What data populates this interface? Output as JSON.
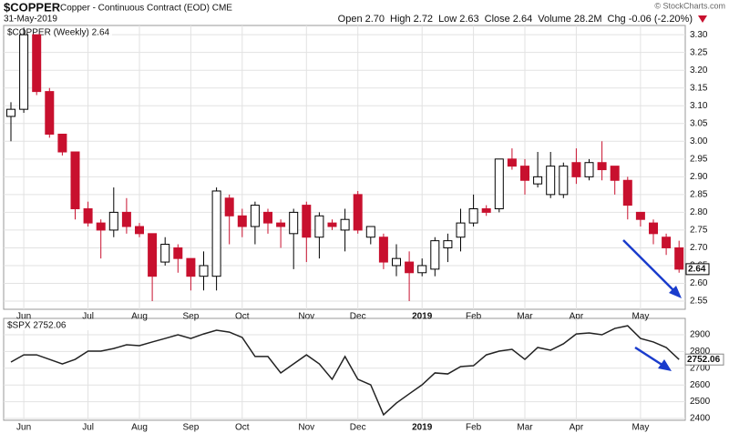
{
  "header": {
    "symbol": "$COPPER",
    "name": "Copper - Continuous Contract (EOD) CME",
    "date": "31-May-2019",
    "copyright": "© StockCharts.com",
    "quote": [
      {
        "label": "Open",
        "value": "2.70"
      },
      {
        "label": "High",
        "value": "2.72"
      },
      {
        "label": "Low",
        "value": "2.63"
      },
      {
        "label": "Close",
        "value": "2.64"
      },
      {
        "label": "Volume",
        "value": "28.2M"
      },
      {
        "label": "Chg",
        "value": "-0.06 (-2.20%)"
      }
    ]
  },
  "chart_data": [
    {
      "type": "candlestick",
      "title": "$COPPER (Weekly) 2.64",
      "categories": [
        null,
        "Jun",
        null,
        null,
        null,
        null,
        "Jul",
        null,
        null,
        null,
        "Aug",
        null,
        null,
        null,
        "Sep",
        null,
        null,
        null,
        "Oct",
        null,
        null,
        null,
        null,
        "Nov",
        null,
        null,
        null,
        "Dec",
        null,
        null,
        null,
        null,
        "2019",
        null,
        null,
        null,
        "Feb",
        null,
        null,
        null,
        "Mar",
        null,
        null,
        null,
        "Apr",
        null,
        null,
        null,
        null,
        "May",
        null,
        null,
        null
      ],
      "open": [
        3.07,
        3.09,
        3.3,
        3.14,
        3.02,
        2.97,
        2.81,
        2.77,
        2.75,
        2.8,
        2.76,
        2.74,
        2.66,
        2.7,
        2.67,
        2.62,
        2.62,
        2.84,
        2.79,
        2.76,
        2.8,
        2.77,
        2.74,
        2.82,
        2.73,
        2.77,
        2.75,
        2.85,
        2.73,
        2.73,
        2.65,
        2.66,
        2.63,
        2.64,
        2.7,
        2.73,
        2.77,
        2.81,
        2.81,
        2.95,
        2.93,
        2.88,
        2.85,
        2.85,
        2.94,
        2.9,
        2.94,
        2.93,
        2.89,
        2.8,
        2.77,
        2.73,
        2.7
      ],
      "high": [
        3.11,
        3.32,
        3.3,
        3.15,
        3.02,
        2.97,
        2.83,
        2.78,
        2.87,
        2.84,
        2.77,
        2.74,
        2.73,
        2.71,
        2.67,
        2.69,
        2.87,
        2.85,
        2.81,
        2.83,
        2.81,
        2.78,
        2.81,
        2.83,
        2.8,
        2.78,
        2.81,
        2.86,
        2.76,
        2.74,
        2.71,
        2.69,
        2.67,
        2.73,
        2.74,
        2.81,
        2.85,
        2.82,
        2.95,
        2.98,
        2.95,
        2.97,
        2.97,
        2.94,
        2.98,
        2.95,
        3.0,
        2.93,
        2.9,
        2.8,
        2.78,
        2.74,
        2.72
      ],
      "low": [
        3.0,
        3.08,
        3.13,
        3.01,
        2.96,
        2.78,
        2.76,
        2.67,
        2.73,
        2.74,
        2.73,
        2.55,
        2.65,
        2.63,
        2.58,
        2.58,
        2.58,
        2.71,
        2.73,
        2.71,
        2.74,
        2.7,
        2.64,
        2.66,
        2.67,
        2.75,
        2.69,
        2.74,
        2.71,
        2.64,
        2.62,
        2.55,
        2.62,
        2.62,
        2.66,
        2.69,
        2.76,
        2.79,
        2.8,
        2.92,
        2.85,
        2.87,
        2.84,
        2.84,
        2.88,
        2.89,
        2.89,
        2.85,
        2.78,
        2.76,
        2.71,
        2.68,
        2.63
      ],
      "close": [
        3.09,
        3.3,
        3.14,
        3.02,
        2.97,
        2.81,
        2.77,
        2.75,
        2.8,
        2.76,
        2.74,
        2.62,
        2.71,
        2.67,
        2.62,
        2.65,
        2.86,
        2.79,
        2.76,
        2.82,
        2.77,
        2.76,
        2.8,
        2.73,
        2.79,
        2.76,
        2.78,
        2.75,
        2.76,
        2.66,
        2.67,
        2.63,
        2.65,
        2.72,
        2.72,
        2.77,
        2.81,
        2.8,
        2.95,
        2.93,
        2.89,
        2.9,
        2.93,
        2.93,
        2.9,
        2.94,
        2.92,
        2.89,
        2.82,
        2.78,
        2.74,
        2.7,
        2.64
      ],
      "up_color": "#ffffff",
      "down_color": "#c8102e",
      "ylim": [
        2.527,
        3.326
      ],
      "yticks": [
        2.55,
        {
          "value": 2.6,
          "label": "2.60"
        },
        2.65,
        {
          "value": 2.7,
          "label": "2.70"
        },
        2.75,
        {
          "value": 2.8,
          "label": "2.80"
        },
        2.85,
        {
          "value": 2.9,
          "label": "2.90"
        },
        2.95,
        {
          "value": 3.0,
          "label": "3.00"
        },
        3.05,
        {
          "value": 3.1,
          "label": "3.10"
        },
        3.15,
        {
          "value": 3.2,
          "label": "3.20"
        },
        3.25,
        {
          "value": 3.3,
          "label": "3.30"
        }
      ],
      "grid": true
    },
    {
      "type": "line",
      "title": "$SPX 2752.06",
      "categories": [
        null,
        "Jun",
        null,
        null,
        null,
        null,
        "Jul",
        null,
        null,
        null,
        "Aug",
        null,
        null,
        null,
        "Sep",
        null,
        null,
        null,
        "Oct",
        null,
        null,
        null,
        null,
        "Nov",
        null,
        null,
        null,
        "Dec",
        null,
        null,
        null,
        null,
        "2019",
        null,
        null,
        null,
        "Feb",
        null,
        null,
        null,
        "Mar",
        null,
        null,
        null,
        "Apr",
        null,
        null,
        null,
        null,
        "May",
        null,
        null,
        null
      ],
      "series": [
        {
          "name": "$SPX",
          "color": "#222222",
          "values": [
            2737,
            2780,
            2780,
            2753,
            2726,
            2753,
            2802,
            2802,
            2818,
            2840,
            2835,
            2857,
            2878,
            2900,
            2878,
            2905,
            2927,
            2916,
            2884,
            2770,
            2770,
            2672,
            2726,
            2780,
            2726,
            2634,
            2770,
            2634,
            2601,
            2422,
            2492,
            2547,
            2601,
            2672,
            2666,
            2710,
            2715,
            2780,
            2802,
            2813,
            2753,
            2824,
            2808,
            2846,
            2905,
            2911,
            2900,
            2938,
            2954,
            2878,
            2857,
            2824,
            2752.06
          ]
        }
      ],
      "ylim": [
        2389,
        2998
      ],
      "yticks": [
        2400,
        2500,
        2600,
        2700,
        2800,
        2900
      ],
      "grid": true
    }
  ]
}
